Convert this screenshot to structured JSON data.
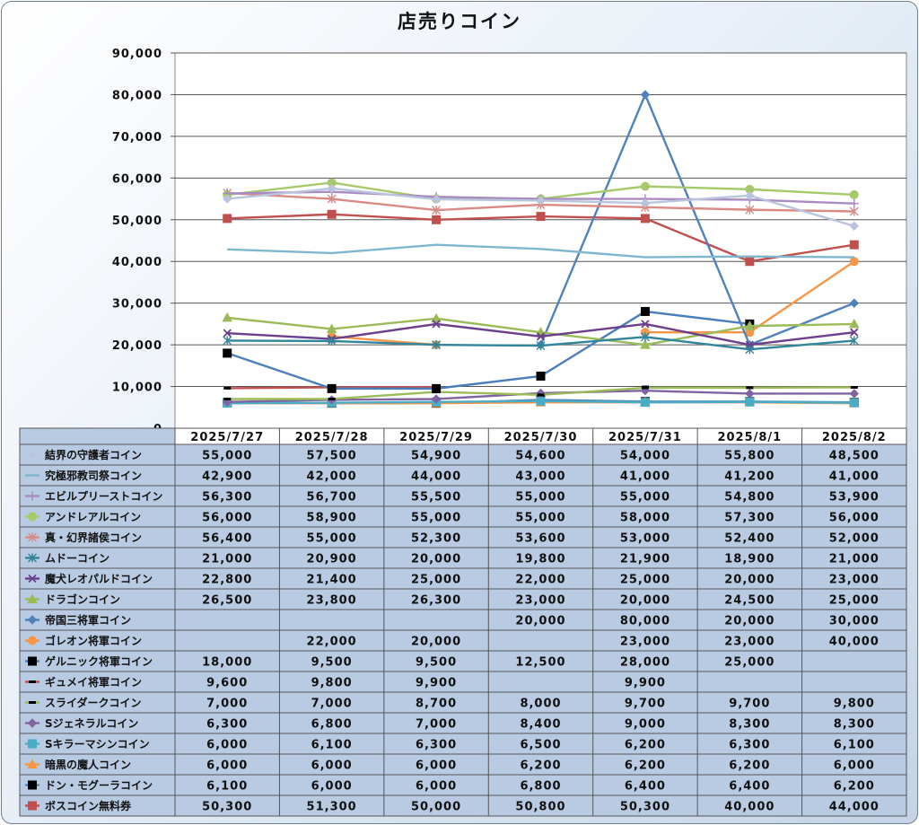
{
  "chart_data": {
    "type": "line",
    "title": "店売りコイン",
    "x": [
      "2025/7/27",
      "2025/7/28",
      "2025/7/29",
      "2025/7/30",
      "2025/7/31",
      "2025/8/1",
      "2025/8/2"
    ],
    "ylim": [
      0,
      90000
    ],
    "yticks": [
      "90,000",
      "80,000",
      "70,000",
      "60,000",
      "50,000",
      "40,000",
      "30,000",
      "20,000",
      "10,000",
      "0"
    ],
    "grid": true,
    "legend": "data-table-left",
    "series": [
      {
        "name": "結界の守護者コイン",
        "color": "#b9c4dd",
        "marker": "diamond",
        "values": [
          55000,
          57500,
          54900,
          54600,
          54000,
          55800,
          48500
        ],
        "labels": [
          "55,000",
          "57,500",
          "54,900",
          "54,600",
          "54,000",
          "55,800",
          "48,500"
        ]
      },
      {
        "name": "究極邪教司祭コイン",
        "color": "#7fb6cf",
        "marker": "none",
        "values": [
          42900,
          42000,
          44000,
          43000,
          41000,
          41200,
          41000
        ],
        "labels": [
          "42,900",
          "42,000",
          "44,000",
          "43,000",
          "41,000",
          "41,200",
          "41,000"
        ]
      },
      {
        "name": "エビルプリーストコイン",
        "color": "#a98bc2",
        "marker": "plus",
        "values": [
          56300,
          56700,
          55500,
          55000,
          55000,
          54800,
          53900
        ],
        "labels": [
          "56,300",
          "56,700",
          "55,500",
          "55,000",
          "55,000",
          "54,800",
          "53,900"
        ]
      },
      {
        "name": "アンドレアルコイン",
        "color": "#a6c96a",
        "marker": "circle",
        "values": [
          56000,
          58900,
          55000,
          55000,
          58000,
          57300,
          56000
        ],
        "labels": [
          "56,000",
          "58,900",
          "55,000",
          "55,000",
          "58,000",
          "57,300",
          "56,000"
        ]
      },
      {
        "name": "真・幻界諸侯コイン",
        "color": "#d98a84",
        "marker": "asterisk",
        "values": [
          56400,
          55000,
          52300,
          53600,
          53000,
          52400,
          52000
        ],
        "labels": [
          "56,400",
          "55,000",
          "52,300",
          "53,600",
          "53,000",
          "52,400",
          "52,000"
        ]
      },
      {
        "name": "ムドーコイン",
        "color": "#31859b",
        "marker": "asterisk",
        "values": [
          21000,
          20900,
          20000,
          19800,
          21900,
          18900,
          21000
        ],
        "labels": [
          "21,000",
          "20,900",
          "20,000",
          "19,800",
          "21,900",
          "18,900",
          "21,000"
        ]
      },
      {
        "name": "魔犬レオパルドコイン",
        "color": "#6b3f8c",
        "marker": "x",
        "values": [
          22800,
          21400,
          25000,
          22000,
          25000,
          20000,
          23000
        ],
        "labels": [
          "22,800",
          "21,400",
          "25,000",
          "22,000",
          "25,000",
          "20,000",
          "23,000"
        ]
      },
      {
        "name": "ドラゴンコイン",
        "color": "#9bbb59",
        "marker": "triangle",
        "values": [
          26500,
          23800,
          26300,
          23000,
          20000,
          24500,
          25000
        ],
        "labels": [
          "26,500",
          "23,800",
          "26,300",
          "23,000",
          "20,000",
          "24,500",
          "25,000"
        ]
      },
      {
        "name": "帝国三将軍コイン",
        "color": "#4f81bd",
        "marker": "diamond",
        "values": [
          null,
          null,
          null,
          20000,
          80000,
          20000,
          30000
        ],
        "labels": [
          "",
          "",
          "",
          "20,000",
          "80,000",
          "20,000",
          "30,000"
        ]
      },
      {
        "name": "ゴレオン将軍コイン",
        "color": "#f79646",
        "marker": "circle",
        "values": [
          null,
          22000,
          20000,
          null,
          23000,
          23000,
          40000
        ],
        "labels": [
          "",
          "22,000",
          "20,000",
          "",
          "23,000",
          "23,000",
          "40,000"
        ]
      },
      {
        "name": "ゲルニック将軍コイン",
        "color": "#4a7ebb",
        "marker": "square-black",
        "values": [
          18000,
          9500,
          9500,
          12500,
          28000,
          25000,
          null
        ],
        "labels": [
          "18,000",
          "9,500",
          "9,500",
          "12,500",
          "28,000",
          "25,000",
          ""
        ]
      },
      {
        "name": "ギュメイ将軍コイン",
        "color": "#c0504d",
        "marker": "dash-black",
        "values": [
          9600,
          9800,
          9900,
          null,
          9900,
          null,
          null
        ],
        "labels": [
          "9,600",
          "9,800",
          "9,900",
          "",
          "9,900",
          "",
          ""
        ]
      },
      {
        "name": "スライダークコイン",
        "color": "#9bbb59",
        "marker": "dash-black",
        "values": [
          7000,
          7000,
          8700,
          8000,
          9700,
          9700,
          9800
        ],
        "labels": [
          "7,000",
          "7,000",
          "8,700",
          "8,000",
          "9,700",
          "9,700",
          "9,800"
        ]
      },
      {
        "name": "Sジェネラルコイン",
        "color": "#8064a2",
        "marker": "diamond",
        "values": [
          6300,
          6800,
          7000,
          8400,
          9000,
          8300,
          8300
        ],
        "labels": [
          "6,300",
          "6,800",
          "7,000",
          "8,400",
          "9,000",
          "8,300",
          "8,300"
        ]
      },
      {
        "name": "Sキラーマシンコイン",
        "color": "#4bacc6",
        "marker": "square",
        "values": [
          6000,
          6100,
          6300,
          6500,
          6200,
          6300,
          6100
        ],
        "labels": [
          "6,000",
          "6,100",
          "6,300",
          "6,500",
          "6,200",
          "6,300",
          "6,100"
        ]
      },
      {
        "name": "暗黒の魔人コイン",
        "color": "#f79646",
        "marker": "triangle",
        "values": [
          6000,
          6000,
          6000,
          6200,
          6200,
          6200,
          6000
        ],
        "labels": [
          "6,000",
          "6,000",
          "6,000",
          "6,200",
          "6,200",
          "6,200",
          "6,000"
        ]
      },
      {
        "name": "ドン・モグーラコイン",
        "color": "#4f81bd",
        "marker": "square-black",
        "values": [
          6100,
          6000,
          6000,
          6800,
          6400,
          6400,
          6200
        ],
        "labels": [
          "6,100",
          "6,000",
          "6,000",
          "6,800",
          "6,400",
          "6,400",
          "6,200"
        ]
      },
      {
        "name": "ボスコイン無料券",
        "color": "#c0504d",
        "marker": "square",
        "values": [
          50300,
          51300,
          50000,
          50800,
          50300,
          40000,
          44000
        ],
        "labels": [
          "50,300",
          "51,300",
          "50,000",
          "50,800",
          "50,300",
          "40,000",
          "44,000"
        ]
      }
    ]
  }
}
